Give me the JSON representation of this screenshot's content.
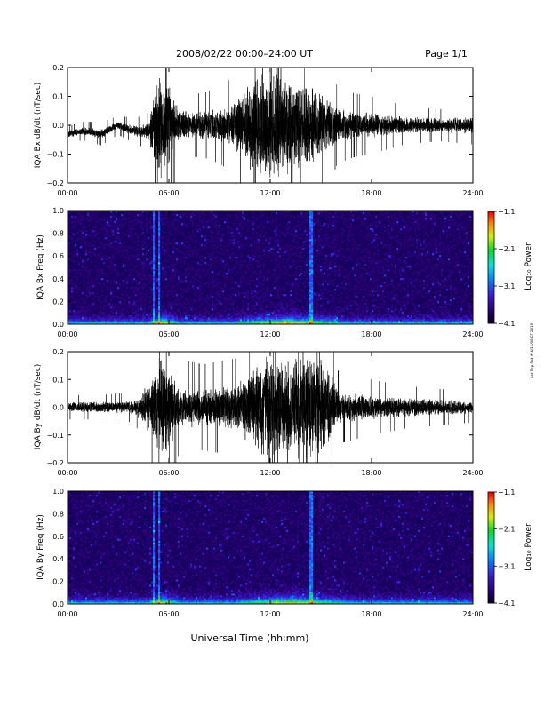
{
  "header": {
    "title": "2008/02/22  00:00–24:00 UT",
    "page": "Page 1/1"
  },
  "side_note": "not Rep Rpt # 4/11/08 EF 2019",
  "footer": {
    "xlabel": "Universal Time (hh:mm)"
  },
  "x_ticks": [
    "00:00",
    "06:00",
    "12:00",
    "18:00",
    "24:00"
  ],
  "chart_data": [
    {
      "type": "line",
      "ylabel": "IQA Bx dB/dt (nT/sec)",
      "xlim": [
        0,
        24
      ],
      "ylim": [
        -0.2,
        0.2
      ],
      "y_ticks": [
        "0.2",
        "0.1",
        "0.0",
        "−0.1",
        "−0.2"
      ],
      "series_color": "#000000",
      "segments": [
        {
          "x": [
            0,
            1,
            2,
            3,
            4,
            4.9
          ],
          "amp": [
            0.012,
            0.015,
            0.018,
            0.015,
            0.02,
            0.03
          ],
          "base": [
            -0.03,
            -0.02,
            -0.03,
            0.0,
            -0.02,
            -0.02
          ]
        },
        {
          "x": [
            4.9,
            5.5,
            6.0,
            6.5,
            7.0,
            8.0,
            9.0,
            10.0
          ],
          "amp": [
            0.08,
            0.2,
            0.15,
            0.07,
            0.05,
            0.05,
            0.06,
            0.08
          ],
          "base": [
            -0.02,
            0.0,
            0.0,
            0.0,
            0.0,
            0.0,
            0.0,
            0.0
          ]
        },
        {
          "x": [
            10.0,
            11.0,
            12.0,
            13.0,
            14.0,
            15.0,
            16.0,
            17.0,
            18.0,
            20.0,
            22.0,
            24.0
          ],
          "amp": [
            0.1,
            0.18,
            0.2,
            0.18,
            0.16,
            0.12,
            0.06,
            0.05,
            0.045,
            0.03,
            0.025,
            0.03
          ],
          "base": [
            0.0,
            0.0,
            0.0,
            0.0,
            0.0,
            0.0,
            0.0,
            0.0,
            0.0,
            0.0,
            0.0,
            0.0
          ]
        }
      ]
    },
    {
      "type": "heatmap",
      "ylabel": "IQA Bx Freq (Hz)",
      "xlim": [
        0,
        24
      ],
      "ylim": [
        0,
        1.0
      ],
      "y_ticks": [
        "1.0",
        "0.8",
        "0.6",
        "0.4",
        "0.2",
        "0.0"
      ],
      "colorbar": {
        "label": "Log₁₀ Power",
        "range": [
          -4.1,
          -1.1
        ],
        "ticks": [
          "−1.1",
          "−2.1",
          "−3.1",
          "−4.1"
        ]
      },
      "features": {
        "vertical_lines_hours": [
          5.1,
          5.4,
          14.4
        ],
        "low_freq_enhancement_hours": [
          [
            4.8,
            6.5
          ],
          [
            10,
            16
          ]
        ],
        "background_level": -3.9
      }
    },
    {
      "type": "line",
      "ylabel": "IQA By dB/dt (nT/sec)",
      "xlim": [
        0,
        24
      ],
      "ylim": [
        -0.2,
        0.2
      ],
      "y_ticks": [
        "0.2",
        "0.1",
        "0.0",
        "−0.1",
        "−0.2"
      ],
      "series_color": "#000000",
      "segments": [
        {
          "x": [
            0,
            2,
            4,
            4.9,
            5.5,
            6.0,
            6.5,
            8.0,
            10.0,
            11.0,
            12.0,
            13.0,
            14.0,
            15.0,
            15.5,
            16.0,
            18.0,
            20.0,
            22.0,
            24.0
          ],
          "amp": [
            0.02,
            0.02,
            0.025,
            0.1,
            0.2,
            0.17,
            0.08,
            0.07,
            0.08,
            0.16,
            0.2,
            0.18,
            0.2,
            0.2,
            0.15,
            0.06,
            0.045,
            0.035,
            0.03,
            0.025
          ],
          "base": [
            0.0,
            0.0,
            0.0,
            0.0,
            0.0,
            0.0,
            0.0,
            0.0,
            0.0,
            0.0,
            0.0,
            0.0,
            0.0,
            0.0,
            0.0,
            0.0,
            0.0,
            0.0,
            0.0,
            0.0
          ]
        }
      ]
    },
    {
      "type": "heatmap",
      "ylabel": "IQA By Freq (Hz)",
      "xlim": [
        0,
        24
      ],
      "ylim": [
        0,
        1.0
      ],
      "y_ticks": [
        "1.0",
        "0.8",
        "0.6",
        "0.4",
        "0.2",
        "0.0"
      ],
      "colorbar": {
        "label": "Log₁₀ Power",
        "range": [
          -4.1,
          -1.1
        ],
        "ticks": [
          "−1.1",
          "−2.1",
          "−3.1",
          "−4.1"
        ]
      },
      "features": {
        "vertical_lines_hours": [
          5.1,
          5.4,
          14.4
        ],
        "low_freq_enhancement_hours": [
          [
            4.8,
            6.5
          ],
          [
            10,
            16.5
          ]
        ],
        "background_level": -3.9
      }
    }
  ]
}
